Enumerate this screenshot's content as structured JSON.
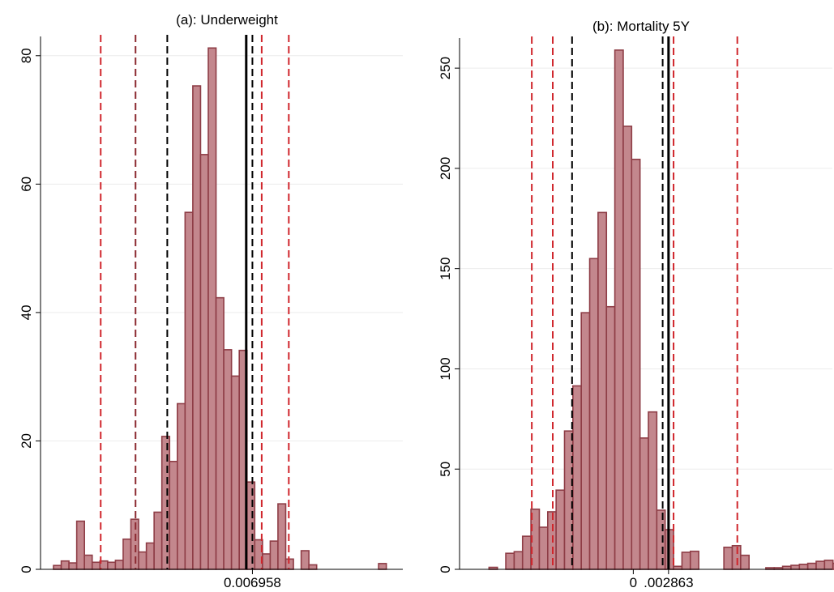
{
  "colors": {
    "bar_fill": "#c3878d",
    "bar_edge": "#8e3d46",
    "red_dashed": "#d0262c",
    "darkred_dashed": "#8b2a30",
    "black_line": "#000000"
  },
  "chart_data": [
    {
      "type": "bar",
      "title": "(a): Underweight",
      "xlabel": "",
      "ylabel": "",
      "ylim": [
        0,
        83
      ],
      "yticks": [
        0,
        20,
        40,
        60,
        80
      ],
      "ytick_labels": [
        "0",
        "20",
        "40",
        "60",
        "80"
      ],
      "xlim": [
        0,
        43
      ],
      "xticks": [
        {
          "x": 25.7,
          "label": "0.006958"
        }
      ],
      "grid": true,
      "bins": [
        {
          "x": 0,
          "value": 0.6
        },
        {
          "x": 1,
          "value": 1.3
        },
        {
          "x": 2,
          "value": 1.0
        },
        {
          "x": 3,
          "value": 7.5
        },
        {
          "x": 4,
          "value": 2.2
        },
        {
          "x": 5,
          "value": 1.1
        },
        {
          "x": 6,
          "value": 1.3
        },
        {
          "x": 7,
          "value": 1.1
        },
        {
          "x": 8,
          "value": 1.4
        },
        {
          "x": 9,
          "value": 4.7
        },
        {
          "x": 10,
          "value": 7.8
        },
        {
          "x": 11,
          "value": 2.7
        },
        {
          "x": 12,
          "value": 4.1
        },
        {
          "x": 13,
          "value": 8.9
        },
        {
          "x": 14,
          "value": 20.7
        },
        {
          "x": 15,
          "value": 16.8
        },
        {
          "x": 16,
          "value": 25.8
        },
        {
          "x": 17,
          "value": 55.6
        },
        {
          "x": 18,
          "value": 75.3
        },
        {
          "x": 19,
          "value": 64.6
        },
        {
          "x": 20,
          "value": 81.2
        },
        {
          "x": 21,
          "value": 42.3
        },
        {
          "x": 22,
          "value": 34.2
        },
        {
          "x": 23,
          "value": 30.1
        },
        {
          "x": 24,
          "value": 34.1
        },
        {
          "x": 25,
          "value": 13.6
        },
        {
          "x": 26,
          "value": 4.6
        },
        {
          "x": 27,
          "value": 2.4
        },
        {
          "x": 28,
          "value": 4.4
        },
        {
          "x": 29,
          "value": 10.2
        },
        {
          "x": 30,
          "value": 1.6
        },
        {
          "x": 32,
          "value": 2.9
        },
        {
          "x": 33,
          "value": 0.7
        },
        {
          "x": 42,
          "value": 0.9
        }
      ],
      "vlines": [
        {
          "x": 6.1,
          "style": "dashed",
          "color": "red"
        },
        {
          "x": 10.6,
          "style": "dashed",
          "color": "darkred"
        },
        {
          "x": 14.7,
          "style": "dashed",
          "color": "black"
        },
        {
          "x": 24.9,
          "style": "solid",
          "color": "black"
        },
        {
          "x": 25.7,
          "style": "dashed",
          "color": "black"
        },
        {
          "x": 26.9,
          "style": "dashed",
          "color": "red"
        },
        {
          "x": 30.4,
          "style": "dashed",
          "color": "red"
        }
      ]
    },
    {
      "type": "bar",
      "title": "(b): Mortality 5Y",
      "xlabel": "",
      "ylabel": "",
      "ylim": [
        0,
        265
      ],
      "yticks": [
        0,
        50,
        100,
        150,
        200,
        250
      ],
      "ytick_labels": [
        "0",
        "50",
        "100",
        "150",
        "200",
        "250"
      ],
      "xlim": [
        0,
        44
      ],
      "xticks": [
        {
          "x": 18.2,
          "label": "0"
        },
        {
          "x": 22.4,
          "label": ".002863"
        }
      ],
      "grid": true,
      "bins": [
        {
          "x": 1,
          "value": 1.0
        },
        {
          "x": 3,
          "value": 8.0
        },
        {
          "x": 4,
          "value": 8.8
        },
        {
          "x": 5,
          "value": 16.5
        },
        {
          "x": 6,
          "value": 30.0
        },
        {
          "x": 7,
          "value": 21.0
        },
        {
          "x": 8,
          "value": 28.7
        },
        {
          "x": 9,
          "value": 39.5
        },
        {
          "x": 10,
          "value": 69.0
        },
        {
          "x": 11,
          "value": 91.5
        },
        {
          "x": 12,
          "value": 128.0
        },
        {
          "x": 13,
          "value": 155.0
        },
        {
          "x": 14,
          "value": 178.0
        },
        {
          "x": 15,
          "value": 131.0
        },
        {
          "x": 16,
          "value": 259.0
        },
        {
          "x": 17,
          "value": 221.0
        },
        {
          "x": 18,
          "value": 204.5
        },
        {
          "x": 19,
          "value": 65.5
        },
        {
          "x": 20,
          "value": 78.5
        },
        {
          "x": 21,
          "value": 29.5
        },
        {
          "x": 22,
          "value": 19.8
        },
        {
          "x": 23,
          "value": 1.5
        },
        {
          "x": 24,
          "value": 8.5
        },
        {
          "x": 25,
          "value": 9.0
        },
        {
          "x": 29,
          "value": 11.0
        },
        {
          "x": 30,
          "value": 11.8
        },
        {
          "x": 31,
          "value": 7.0
        },
        {
          "x": 34,
          "value": 0.8
        },
        {
          "x": 35,
          "value": 0.8
        },
        {
          "x": 36,
          "value": 1.5
        },
        {
          "x": 37,
          "value": 2.0
        },
        {
          "x": 38,
          "value": 2.5
        },
        {
          "x": 39,
          "value": 3.0
        },
        {
          "x": 40,
          "value": 4.0
        },
        {
          "x": 41,
          "value": 4.5
        },
        {
          "x": 42,
          "value": 3.0
        }
      ],
      "vlines": [
        {
          "x": 6.1,
          "style": "dashed",
          "color": "red"
        },
        {
          "x": 8.6,
          "style": "dashed",
          "color": "red"
        },
        {
          "x": 10.9,
          "style": "dashed",
          "color": "black"
        },
        {
          "x": 21.7,
          "style": "dashed",
          "color": "black"
        },
        {
          "x": 22.4,
          "style": "solid",
          "color": "black"
        },
        {
          "x": 23.0,
          "style": "dashed",
          "color": "red"
        },
        {
          "x": 30.6,
          "style": "dashed",
          "color": "red"
        }
      ]
    }
  ]
}
